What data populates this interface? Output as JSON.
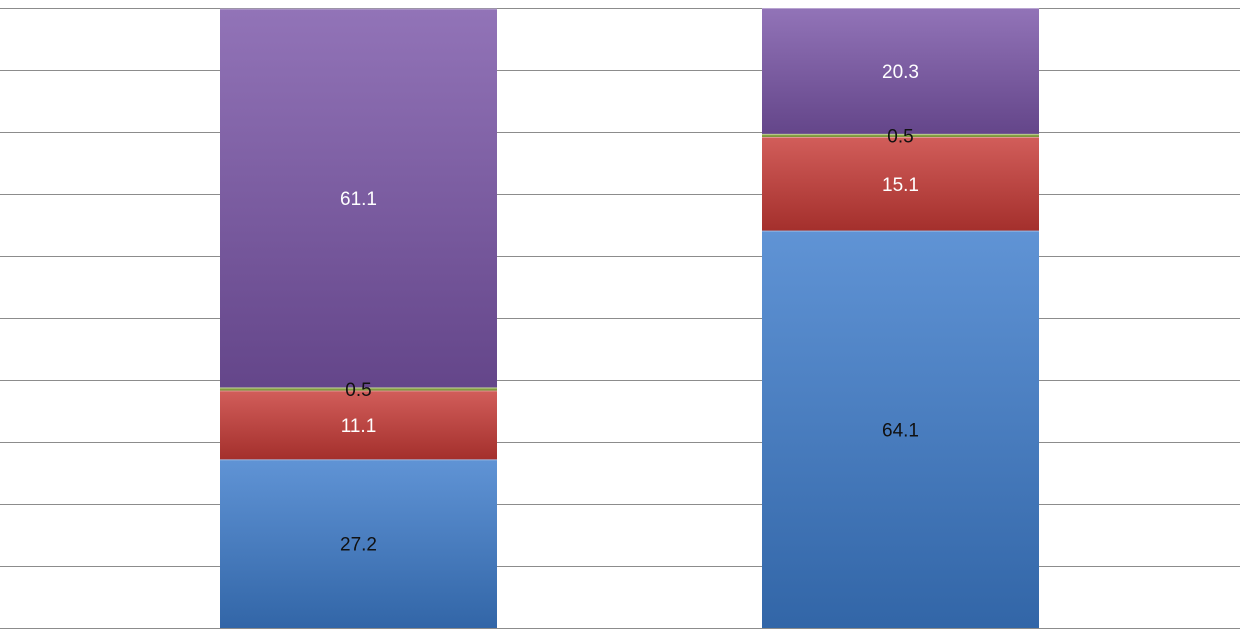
{
  "chart_data": {
    "type": "bar",
    "stacked": true,
    "orientation": "vertical",
    "categories": [
      "",
      ""
    ],
    "series": [
      {
        "values": [
          27.2,
          64.1
        ],
        "color": "#3d7ccc",
        "label_color": "#111111"
      },
      {
        "values": [
          11.1,
          15.1
        ],
        "color": "#c83a36",
        "label_color": "#ffffff"
      },
      {
        "values": [
          0.5,
          0.5
        ],
        "color": "#8aaa3a",
        "label_color": "#111111"
      },
      {
        "values": [
          61.1,
          20.3
        ],
        "color": "#7a55a8",
        "label_color": "#ffffff"
      }
    ],
    "data_labels": [
      [
        "27.2",
        "11.1",
        "0.5",
        "61.1"
      ],
      [
        "64.1",
        "15.1",
        "0.5",
        "20.3"
      ]
    ],
    "title": "",
    "xlabel": "",
    "ylabel": "",
    "ylim": [
      0,
      100
    ],
    "grid": true,
    "axes_visible": false,
    "legend": "none"
  }
}
